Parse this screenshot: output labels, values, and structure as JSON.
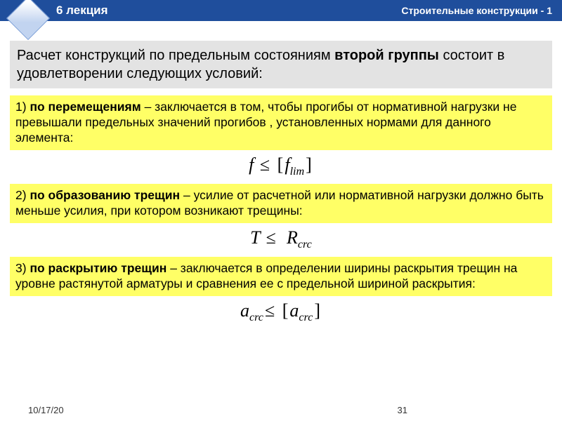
{
  "header": {
    "lecture": "6 лекция",
    "course": "Строительные конструкции - 1"
  },
  "intro": {
    "pre": "  Расчет конструкций по предельным состояниям ",
    "bold": "второй группы",
    "post": " состоит в удовлетворении следующих условий:"
  },
  "cond1": {
    "num": "1)  ",
    "title": "по перемещениям",
    "text": " – заключается в том, чтобы прогибы от нормативной нагрузки не превышали предельных значений прогибов , установленных нормами для данного элемента:"
  },
  "formula1": {
    "lhs": "f",
    "op": "≤",
    "bracket_open": "[",
    "rhs": "f",
    "sub": "lim",
    "bracket_close": "]"
  },
  "cond2": {
    "num": "2) ",
    "title": "по образованию трещин",
    "text": " – усилие от расчетной или нормативной нагрузки должно быть меньше усилия, при котором возникают трещины:"
  },
  "formula2": {
    "lhs": "T",
    "op": "≤",
    "rhs": "R",
    "sub": "crc"
  },
  "cond3": {
    "num": "3) ",
    "title": "по раскрытию трещин",
    "text": " – заключается в определении ширины раскрытия трещин на уровне растянутой арматуры и сравнения ее с предельной шириной раскрытия:"
  },
  "formula3": {
    "lhs": "a",
    "lsub": "crc",
    "op": "≤",
    "bracket_open": "[",
    "rhs": "a",
    "rsub": "crc",
    "bracket_close": "]"
  },
  "footer": {
    "date": "10/17/20",
    "page": "31"
  },
  "colors": {
    "header_bg": "#1f4e9c",
    "intro_bg": "#e3e3e3",
    "cond_bg": "#ffff66"
  }
}
